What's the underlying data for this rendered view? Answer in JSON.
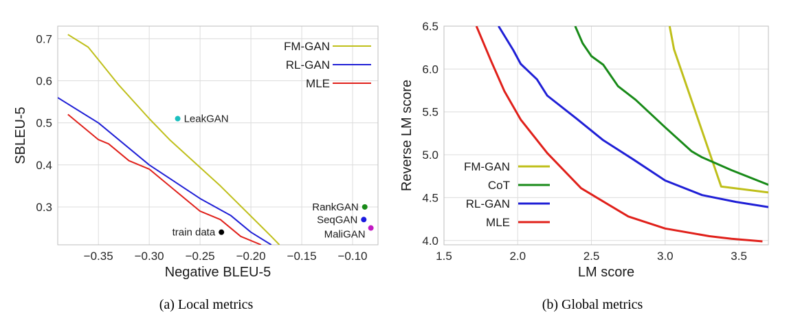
{
  "chart_data": [
    {
      "type": "line",
      "caption": "(a) Local metrics",
      "xlabel": "Negative BLEU-5",
      "ylabel": "SBLEU-5",
      "xlim": [
        -0.39,
        -0.075
      ],
      "ylim": [
        0.21,
        0.73
      ],
      "xticks": [
        -0.35,
        -0.3,
        -0.25,
        -0.2,
        -0.15,
        -0.1
      ],
      "xtick_labels": [
        "−0.35",
        "−0.30",
        "−0.25",
        "−0.20",
        "−0.15",
        "−0.10"
      ],
      "yticks": [
        0.3,
        0.4,
        0.5,
        0.6,
        0.7
      ],
      "ytick_labels": [
        "0.3",
        "0.4",
        "0.5",
        "0.6",
        "0.7"
      ],
      "grid": true,
      "legend": "top-right",
      "series": [
        {
          "name": "FM-GAN",
          "color": "#bfbf1a",
          "x": [
            -0.38,
            -0.36,
            -0.35,
            -0.33,
            -0.3,
            -0.28,
            -0.23,
            -0.18,
            -0.172
          ],
          "y": [
            0.71,
            0.68,
            0.65,
            0.59,
            0.51,
            0.46,
            0.35,
            0.23,
            0.21
          ]
        },
        {
          "name": "RL-GAN",
          "color": "#1f1fd6",
          "x": [
            -0.39,
            -0.35,
            -0.3,
            -0.25,
            -0.22,
            -0.2,
            -0.18
          ],
          "y": [
            0.56,
            0.5,
            0.4,
            0.32,
            0.28,
            0.24,
            0.21
          ]
        },
        {
          "name": "MLE",
          "color": "#e0201a",
          "x": [
            -0.38,
            -0.36,
            -0.35,
            -0.34,
            -0.32,
            -0.3,
            -0.25,
            -0.23,
            -0.21,
            -0.19
          ],
          "y": [
            0.52,
            0.48,
            0.46,
            0.45,
            0.41,
            0.39,
            0.29,
            0.27,
            0.23,
            0.21
          ]
        }
      ],
      "points": [
        {
          "label": "LeakGAN",
          "x": -0.272,
          "y": 0.51,
          "color": "#1bbfbf",
          "label_side": "right"
        },
        {
          "label": "RankGAN",
          "x": -0.088,
          "y": 0.3,
          "color": "#188a18",
          "label_side": "left"
        },
        {
          "label": "SeqGAN",
          "x": -0.089,
          "y": 0.27,
          "color": "#1a1ae0",
          "label_side": "left"
        },
        {
          "label": "MaliGAN",
          "x": -0.082,
          "y": 0.25,
          "color": "#c21ac2",
          "label_side": "left-below"
        },
        {
          "label": "train data",
          "x": -0.229,
          "y": 0.24,
          "color": "#000000",
          "label_side": "left"
        }
      ]
    },
    {
      "type": "line",
      "caption": "(b) Global metrics",
      "xlabel": "LM score",
      "ylabel": "Reverse LM score",
      "xlim": [
        1.5,
        3.7
      ],
      "ylim": [
        3.95,
        6.5
      ],
      "xticks": [
        1.5,
        2.0,
        2.5,
        3.0,
        3.5
      ],
      "xtick_labels": [
        "1.5",
        "2.0",
        "2.5",
        "3.0",
        "3.5"
      ],
      "yticks": [
        4.0,
        4.5,
        5.0,
        5.5,
        6.0,
        6.5
      ],
      "ytick_labels": [
        "4.0",
        "4.5",
        "5.0",
        "5.5",
        "6.0",
        "6.5"
      ],
      "grid": true,
      "legend": "bottom-left",
      "series": [
        {
          "name": "FM-GAN",
          "color": "#bfbf1a",
          "x": [
            3.03,
            3.06,
            3.38,
            3.7
          ],
          "y": [
            6.5,
            6.23,
            4.63,
            4.56
          ]
        },
        {
          "name": "CoT",
          "color": "#188a18",
          "x": [
            2.39,
            2.44,
            2.5,
            2.58,
            2.68,
            2.8,
            3.0,
            3.18,
            3.25,
            3.45,
            3.7
          ],
          "y": [
            6.5,
            6.3,
            6.15,
            6.05,
            5.8,
            5.64,
            5.32,
            5.04,
            4.97,
            4.82,
            4.65
          ]
        },
        {
          "name": "RL-GAN",
          "color": "#1f1fd6",
          "x": [
            1.87,
            1.97,
            2.02,
            2.13,
            2.2,
            2.4,
            2.58,
            2.78,
            3.0,
            3.25,
            3.48,
            3.7
          ],
          "y": [
            6.5,
            6.22,
            6.06,
            5.88,
            5.69,
            5.42,
            5.17,
            4.95,
            4.7,
            4.53,
            4.45,
            4.39
          ]
        },
        {
          "name": "MLE",
          "color": "#e0201a",
          "x": [
            1.72,
            1.82,
            1.91,
            2.02,
            2.2,
            2.43,
            2.75,
            3.0,
            3.3,
            3.45,
            3.66
          ],
          "y": [
            6.5,
            6.09,
            5.74,
            5.41,
            5.02,
            4.61,
            4.28,
            4.14,
            4.05,
            4.02,
            3.99
          ]
        }
      ]
    }
  ]
}
